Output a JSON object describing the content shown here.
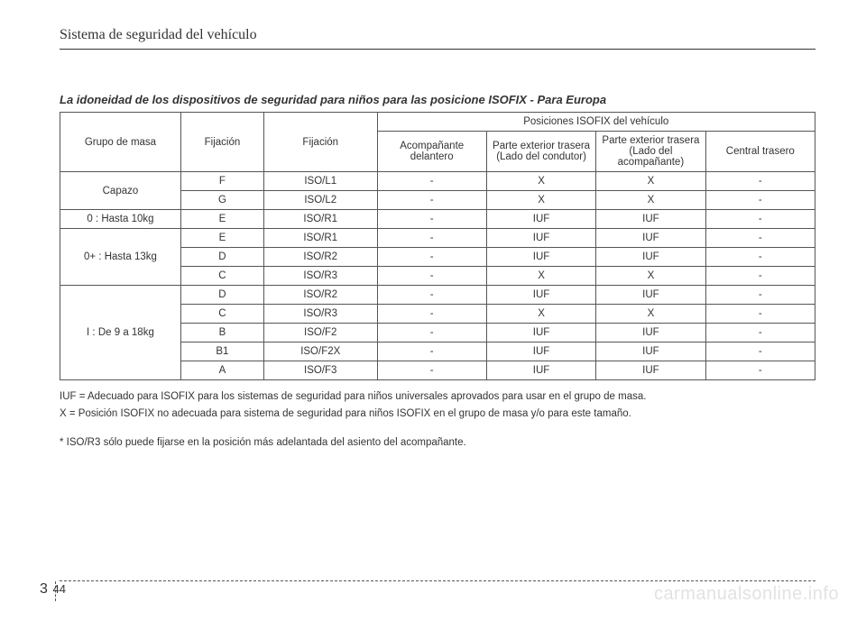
{
  "header": "Sistema de seguridad del vehículo",
  "caption": "La idoneidad de los dispositivos de seguridad para niños para las posicione ISOFIX  - Para Europa",
  "table": {
    "head": {
      "mass_group": "Grupo de masa",
      "fixation_a": "Fijación",
      "fixation_b": "Fijación",
      "positions_title": "Posiciones ISOFIX del vehículo",
      "pos_front": "Acompañante delantero",
      "pos_rear_driver": "Parte exterior trasera (Lado del condutor)",
      "pos_rear_passenger": "Parte exterior trasera (Lado del acompañante)",
      "pos_rear_center": "Central trasero"
    },
    "groups": [
      {
        "label": "Capazo",
        "rows": [
          {
            "fixA": "F",
            "fixB": "ISO/L1",
            "c1": "-",
            "c2": "X",
            "c3": "X",
            "c4": "-"
          },
          {
            "fixA": "G",
            "fixB": "ISO/L2",
            "c1": "-",
            "c2": "X",
            "c3": "X",
            "c4": "-"
          }
        ]
      },
      {
        "label": "0 : Hasta 10kg",
        "rows": [
          {
            "fixA": "E",
            "fixB": "ISO/R1",
            "c1": "-",
            "c2": "IUF",
            "c3": "IUF",
            "c4": "-"
          }
        ]
      },
      {
        "label": "0+ : Hasta 13kg",
        "rows": [
          {
            "fixA": "E",
            "fixB": "ISO/R1",
            "c1": "-",
            "c2": "IUF",
            "c3": "IUF",
            "c4": "-"
          },
          {
            "fixA": "D",
            "fixB": "ISO/R2",
            "c1": "-",
            "c2": "IUF",
            "c3": "IUF",
            "c4": "-"
          },
          {
            "fixA": "C",
            "fixB": "ISO/R3",
            "c1": "-",
            "c2": "X",
            "c3": "X",
            "c4": "-"
          }
        ]
      },
      {
        "label": "I : De 9 a 18kg",
        "rows": [
          {
            "fixA": "D",
            "fixB": "ISO/R2",
            "c1": "-",
            "c2": "IUF",
            "c3": "IUF",
            "c4": "-"
          },
          {
            "fixA": "C",
            "fixB": "ISO/R3",
            "c1": "-",
            "c2": "X",
            "c3": "X",
            "c4": "-"
          },
          {
            "fixA": "B",
            "fixB": "ISO/F2",
            "c1": "-",
            "c2": "IUF",
            "c3": "IUF",
            "c4": "-"
          },
          {
            "fixA": "B1",
            "fixB": "ISO/F2X",
            "c1": "-",
            "c2": "IUF",
            "c3": "IUF",
            "c4": "-"
          },
          {
            "fixA": "A",
            "fixB": "ISO/F3",
            "c1": "-",
            "c2": "IUF",
            "c3": "IUF",
            "c4": "-"
          }
        ]
      }
    ]
  },
  "notes": {
    "iuf": "IUF = Adecuado para ISOFIX para los sistemas de seguridad para niños universales aprovados para usar en el grupo de masa.",
    "x": "X = Posición ISOFIX no adecuada para sistema de seguridad para niños ISOFIX en el grupo de masa y/o para este tamaño.",
    "iso_r3": "* ISO/R3 sólo puede fijarse en la posición más adelantada del asiento del acompañante."
  },
  "page": {
    "chapter": "3",
    "number": "44"
  },
  "watermark": "carmanualsonline.info",
  "style": {
    "cell_font_size": 11.5,
    "header_font_size": 16,
    "caption_font_size": 13,
    "border_color": "#555555",
    "text_color": "#333333",
    "watermark_color": "#e2e2e2",
    "col_widths_percent": [
      16,
      11,
      15,
      14.5,
      14.5,
      14.5,
      14.5
    ]
  }
}
